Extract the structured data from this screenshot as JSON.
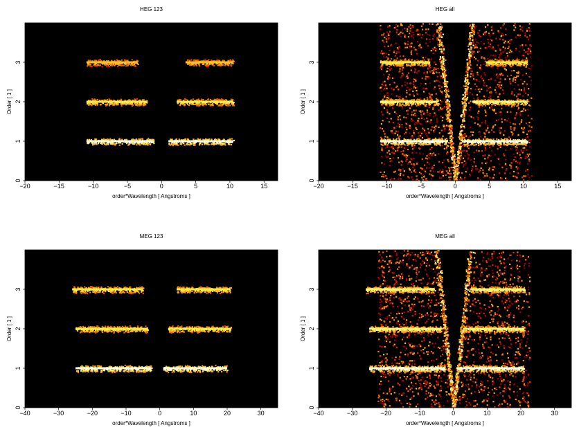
{
  "chart_data": [
    {
      "type": "heatmap",
      "title": "HEG 123",
      "xlabel": "order*Wavelength [ Angstroms ]",
      "ylabel": "Order [ 1 ]",
      "xlim": [
        -20,
        17
      ],
      "ylim": [
        0,
        4
      ],
      "xticks": [
        -20,
        -15,
        -10,
        -5,
        0,
        5,
        10,
        15
      ],
      "yticks": [
        0,
        1,
        2,
        3
      ],
      "colormap": "black-red-yellow-white",
      "bands": [
        {
          "order": 1,
          "x_ranges": [
            [
              -11,
              -1.2
            ],
            [
              1,
              10.5
            ]
          ],
          "intensity": 1.0
        },
        {
          "order": 2,
          "x_ranges": [
            [
              -11,
              -2.2
            ],
            [
              2.2,
              10.5
            ]
          ],
          "intensity": 0.85
        },
        {
          "order": 3,
          "x_ranges": [
            [
              -11,
              -3.5
            ],
            [
              3.5,
              10.5
            ]
          ],
          "intensity": 0.75
        }
      ],
      "v_pattern": false
    },
    {
      "type": "heatmap",
      "title": "HEG all",
      "xlabel": "order*Wavelength [ Angstroms ]",
      "ylabel": "Order [ 1 ]",
      "xlim": [
        -20,
        17
      ],
      "ylim": [
        0,
        4
      ],
      "xticks": [
        -20,
        -15,
        -10,
        -5,
        0,
        5,
        10,
        15
      ],
      "yticks": [
        0,
        1,
        2,
        3
      ],
      "colormap": "black-red-yellow-white",
      "bands": [
        {
          "order": 1,
          "x_ranges": [
            [
              -11,
              -1.2
            ],
            [
              1,
              10.5
            ]
          ],
          "intensity": 1.0
        },
        {
          "order": 2,
          "x_ranges": [
            [
              -11,
              -2.5
            ],
            [
              2.5,
              10.5
            ]
          ],
          "intensity": 0.9
        },
        {
          "order": 3,
          "x_ranges": [
            [
              -11,
              -3.8
            ],
            [
              4.5,
              10.5
            ]
          ],
          "intensity": 0.85
        }
      ],
      "v_pattern": true
    },
    {
      "type": "heatmap",
      "title": "MEG 123",
      "xlabel": "order*Wavelength [ Angstroms ]",
      "ylabel": "Order [ 1 ]",
      "xlim": [
        -40,
        35
      ],
      "ylim": [
        0,
        4
      ],
      "xticks": [
        -40,
        -30,
        -20,
        -10,
        0,
        10,
        20,
        30
      ],
      "yticks": [
        0,
        1,
        2,
        3
      ],
      "colormap": "black-red-yellow-white",
      "bands": [
        {
          "order": 1,
          "x_ranges": [
            [
              -25,
              -2.5
            ],
            [
              1,
              20
            ]
          ],
          "intensity": 1.0
        },
        {
          "order": 2,
          "x_ranges": [
            [
              -25,
              -3.5
            ],
            [
              2.5,
              21
            ]
          ],
          "intensity": 0.85
        },
        {
          "order": 3,
          "x_ranges": [
            [
              -26,
              -5
            ],
            [
              5,
              21
            ]
          ],
          "intensity": 0.85
        }
      ],
      "v_pattern": false
    },
    {
      "type": "heatmap",
      "title": "MEG all",
      "xlabel": "order*Wavelength [ Angstroms ]",
      "ylabel": "Order [ 1 ]",
      "xlim": [
        -40,
        35
      ],
      "ylim": [
        0,
        4
      ],
      "xticks": [
        -40,
        -30,
        -20,
        -10,
        0,
        10,
        20,
        30
      ],
      "yticks": [
        0,
        1,
        2,
        3
      ],
      "colormap": "black-red-yellow-white",
      "bands": [
        {
          "order": 1,
          "x_ranges": [
            [
              -25,
              -2.5
            ],
            [
              1,
              21
            ]
          ],
          "intensity": 1.0
        },
        {
          "order": 2,
          "x_ranges": [
            [
              -25,
              -3.5
            ],
            [
              3,
              21
            ]
          ],
          "intensity": 0.9
        },
        {
          "order": 3,
          "x_ranges": [
            [
              -26,
              -5.5
            ],
            [
              5,
              21
            ]
          ],
          "intensity": 0.9
        }
      ],
      "v_pattern": true
    }
  ]
}
